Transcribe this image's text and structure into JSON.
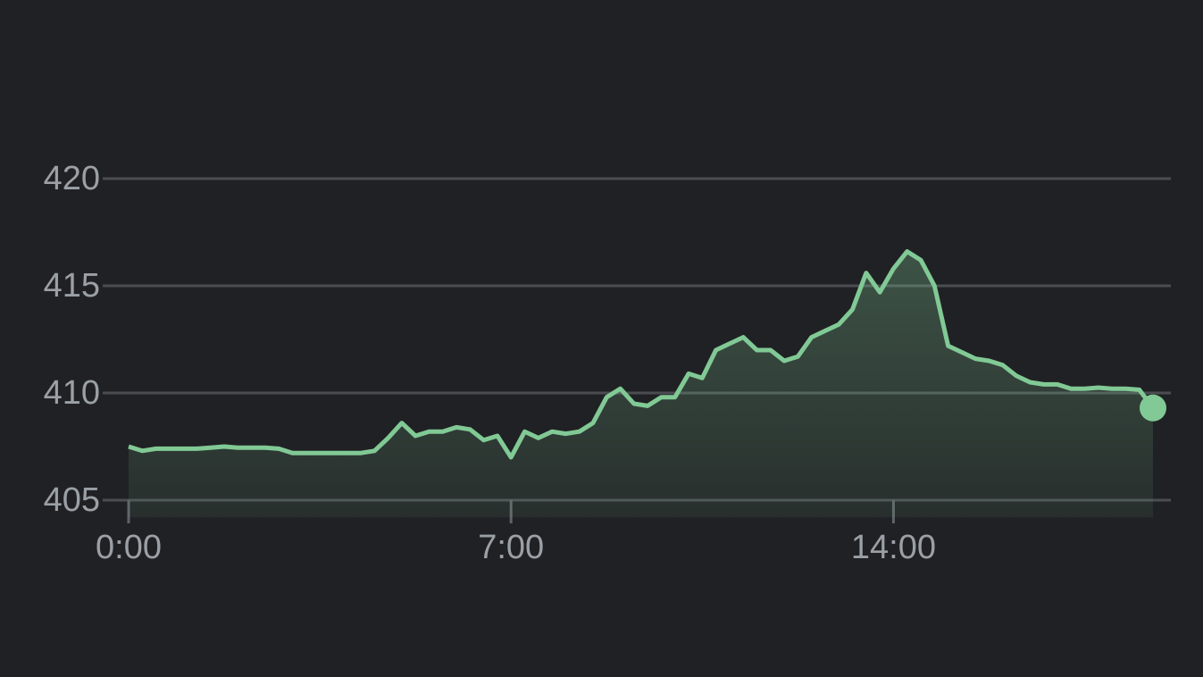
{
  "chart_data": {
    "type": "area",
    "x": [
      0,
      0.25,
      0.5,
      0.75,
      1,
      1.25,
      1.5,
      1.75,
      2,
      2.25,
      2.5,
      2.75,
      3,
      3.25,
      3.5,
      3.75,
      4,
      4.25,
      4.5,
      4.75,
      5,
      5.25,
      5.5,
      5.75,
      6,
      6.25,
      6.5,
      6.75,
      7,
      7.25,
      7.5,
      7.75,
      8,
      8.25,
      8.5,
      8.75,
      9,
      9.25,
      9.5,
      9.75,
      10,
      10.25,
      10.5,
      10.75,
      11,
      11.25,
      11.5,
      11.75,
      12,
      12.25,
      12.5,
      12.75,
      13,
      13.25,
      13.5,
      13.75,
      14,
      14.25,
      14.5,
      14.75,
      15,
      15.25,
      15.5,
      15.75,
      16,
      16.25,
      16.5,
      16.75,
      17,
      17.25,
      17.5,
      17.75,
      18,
      18.25,
      18.5,
      18.75
    ],
    "series": [
      {
        "color": "#81c995",
        "values": [
          407.5,
          407.3,
          407.4,
          407.4,
          407.4,
          407.4,
          407.45,
          407.5,
          407.45,
          407.45,
          407.45,
          407.4,
          407.2,
          407.2,
          407.2,
          407.2,
          407.2,
          407.2,
          407.3,
          407.9,
          408.6,
          408.0,
          408.2,
          408.2,
          408.4,
          408.3,
          407.8,
          408.0,
          407.0,
          408.2,
          407.9,
          408.2,
          408.1,
          408.2,
          408.6,
          409.8,
          410.2,
          409.5,
          409.4,
          409.8,
          409.8,
          410.9,
          410.7,
          412.0,
          412.3,
          412.6,
          412.0,
          412.0,
          411.5,
          411.7,
          412.6,
          412.9,
          413.2,
          413.9,
          415.6,
          414.7,
          415.8,
          416.6,
          416.2,
          415.0,
          412.2,
          411.9,
          411.6,
          411.5,
          411.3,
          410.8,
          410.5,
          410.4,
          410.4,
          410.2,
          410.2,
          410.25,
          410.2,
          410.2,
          410.15,
          409.3
        ]
      }
    ],
    "xlim": [
      0,
      18.75
    ],
    "xticks": [
      {
        "value": 0,
        "label": "0:00"
      },
      {
        "value": 7,
        "label": "7:00"
      },
      {
        "value": 14,
        "label": "14:00"
      }
    ],
    "ylim": [
      404.2,
      420
    ],
    "yticks": [
      405,
      410,
      415,
      420
    ],
    "grid": true
  }
}
